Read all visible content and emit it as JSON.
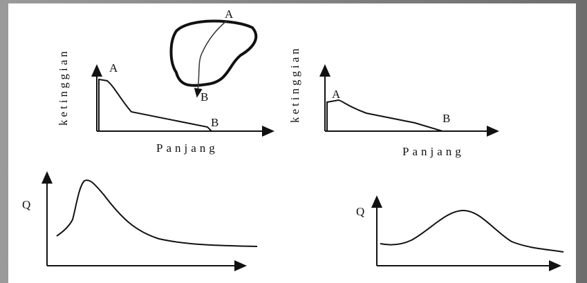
{
  "panels": [
    {
      "y_label": "ketinggian",
      "x_label": "Panjang",
      "start_label": "A",
      "end_label": "B",
      "map_start_label": "A",
      "map_end_label": "B"
    },
    {
      "y_label": "ketinggian",
      "x_label": "Panjang",
      "start_label": "A",
      "end_label": "B"
    },
    {
      "y_label": "Q"
    },
    {
      "y_label": "Q"
    }
  ]
}
